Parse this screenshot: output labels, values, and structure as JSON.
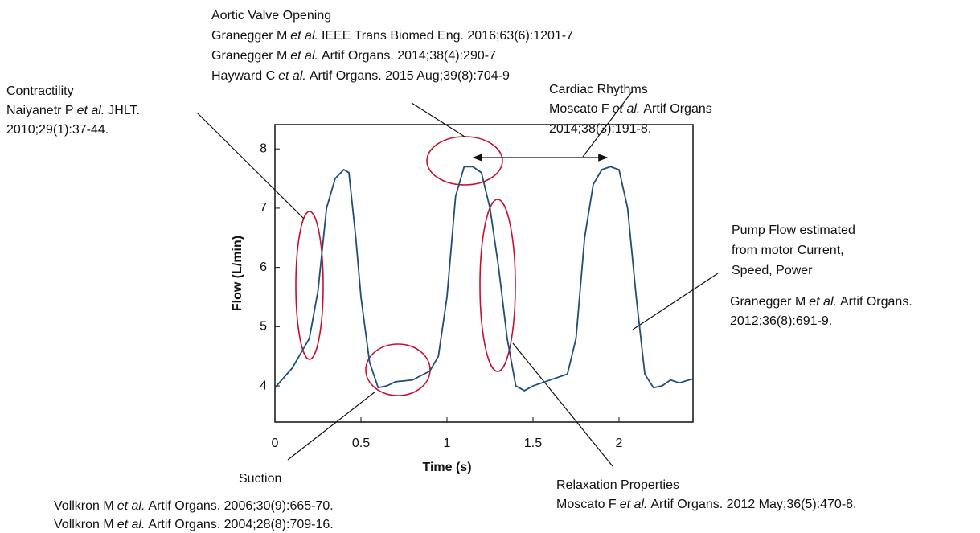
{
  "chart_data": {
    "type": "line",
    "x_label": "Time (s)",
    "y_label": "Flow (L/min)",
    "x": [
      0,
      0.1,
      0.2,
      0.25,
      0.3,
      0.35,
      0.4,
      0.43,
      0.47,
      0.5,
      0.55,
      0.6,
      0.65,
      0.7,
      0.8,
      0.9,
      0.95,
      1.0,
      1.05,
      1.1,
      1.15,
      1.2,
      1.25,
      1.3,
      1.35,
      1.4,
      1.45,
      1.5,
      1.6,
      1.7,
      1.75,
      1.8,
      1.85,
      1.9,
      1.95,
      2.0,
      2.05,
      2.1,
      2.15,
      2.2,
      2.25,
      2.3,
      2.35,
      2.43
    ],
    "series": [
      {
        "color": "#1f4e79",
        "values": [
          3.97,
          4.3,
          4.8,
          5.6,
          7.0,
          7.5,
          7.65,
          7.6,
          6.5,
          5.5,
          4.4,
          3.97,
          4.0,
          4.07,
          4.1,
          4.25,
          4.5,
          5.5,
          7.2,
          7.7,
          7.7,
          7.6,
          7.0,
          6.0,
          4.8,
          4.0,
          3.92,
          4.0,
          4.1,
          4.2,
          4.8,
          6.5,
          7.4,
          7.65,
          7.7,
          7.65,
          7.0,
          5.5,
          4.2,
          3.97,
          4.0,
          4.1,
          4.05,
          4.12
        ]
      }
    ],
    "xlim": [
      0,
      2.43
    ],
    "ylim": [
      3.39,
      8.41
    ],
    "xticks": [
      0,
      0.5,
      1,
      1.5,
      2
    ],
    "yticks": [
      4,
      5,
      6,
      7,
      8
    ],
    "annotations": [
      {
        "lines": [
          "Aortic Valve Opening",
          [
            "Granegger M",
            "et al.",
            "IEEE Trans Biomed Eng. 2016;63(6):1201-7"
          ],
          [
            "Granegger M",
            "et al.",
            "Artif Organs. 2014;38(4):290-7"
          ],
          [
            "Hayward C",
            "et al.",
            "Artif Organs. 2015 Aug;39(8):704-9"
          ]
        ]
      },
      {
        "lines": [
          "Contractility",
          [
            "Naiyanetr P",
            "et al.",
            "JHLT."
          ],
          "2010;29(1):37-44."
        ]
      },
      {
        "lines": [
          "Cardiac Rhythms",
          [
            "Moscato F",
            "et al.",
            "Artif Organs"
          ],
          "2014;38(3):191-8."
        ]
      },
      {
        "lines": [
          "Pump Flow estimated",
          "from motor Current,",
          "Speed, Power",
          [
            "Granegger M",
            "et al.",
            "Artif Organs."
          ],
          "2012;36(8):691-9."
        ]
      },
      {
        "lines": [
          "Suction",
          [
            "Vollkron M",
            "et al.",
            "Artif Organs. 2006;30(9):665-70."
          ],
          [
            "Vollkron M",
            "et al.",
            "Artif Organs. 2004;28(8):709-16."
          ]
        ]
      },
      {
        "lines": [
          "Relaxation Properties",
          [
            "Moscato F",
            "et al.",
            "Artif Organs. 2012 May;36(5):470-8."
          ]
        ]
      }
    ]
  }
}
